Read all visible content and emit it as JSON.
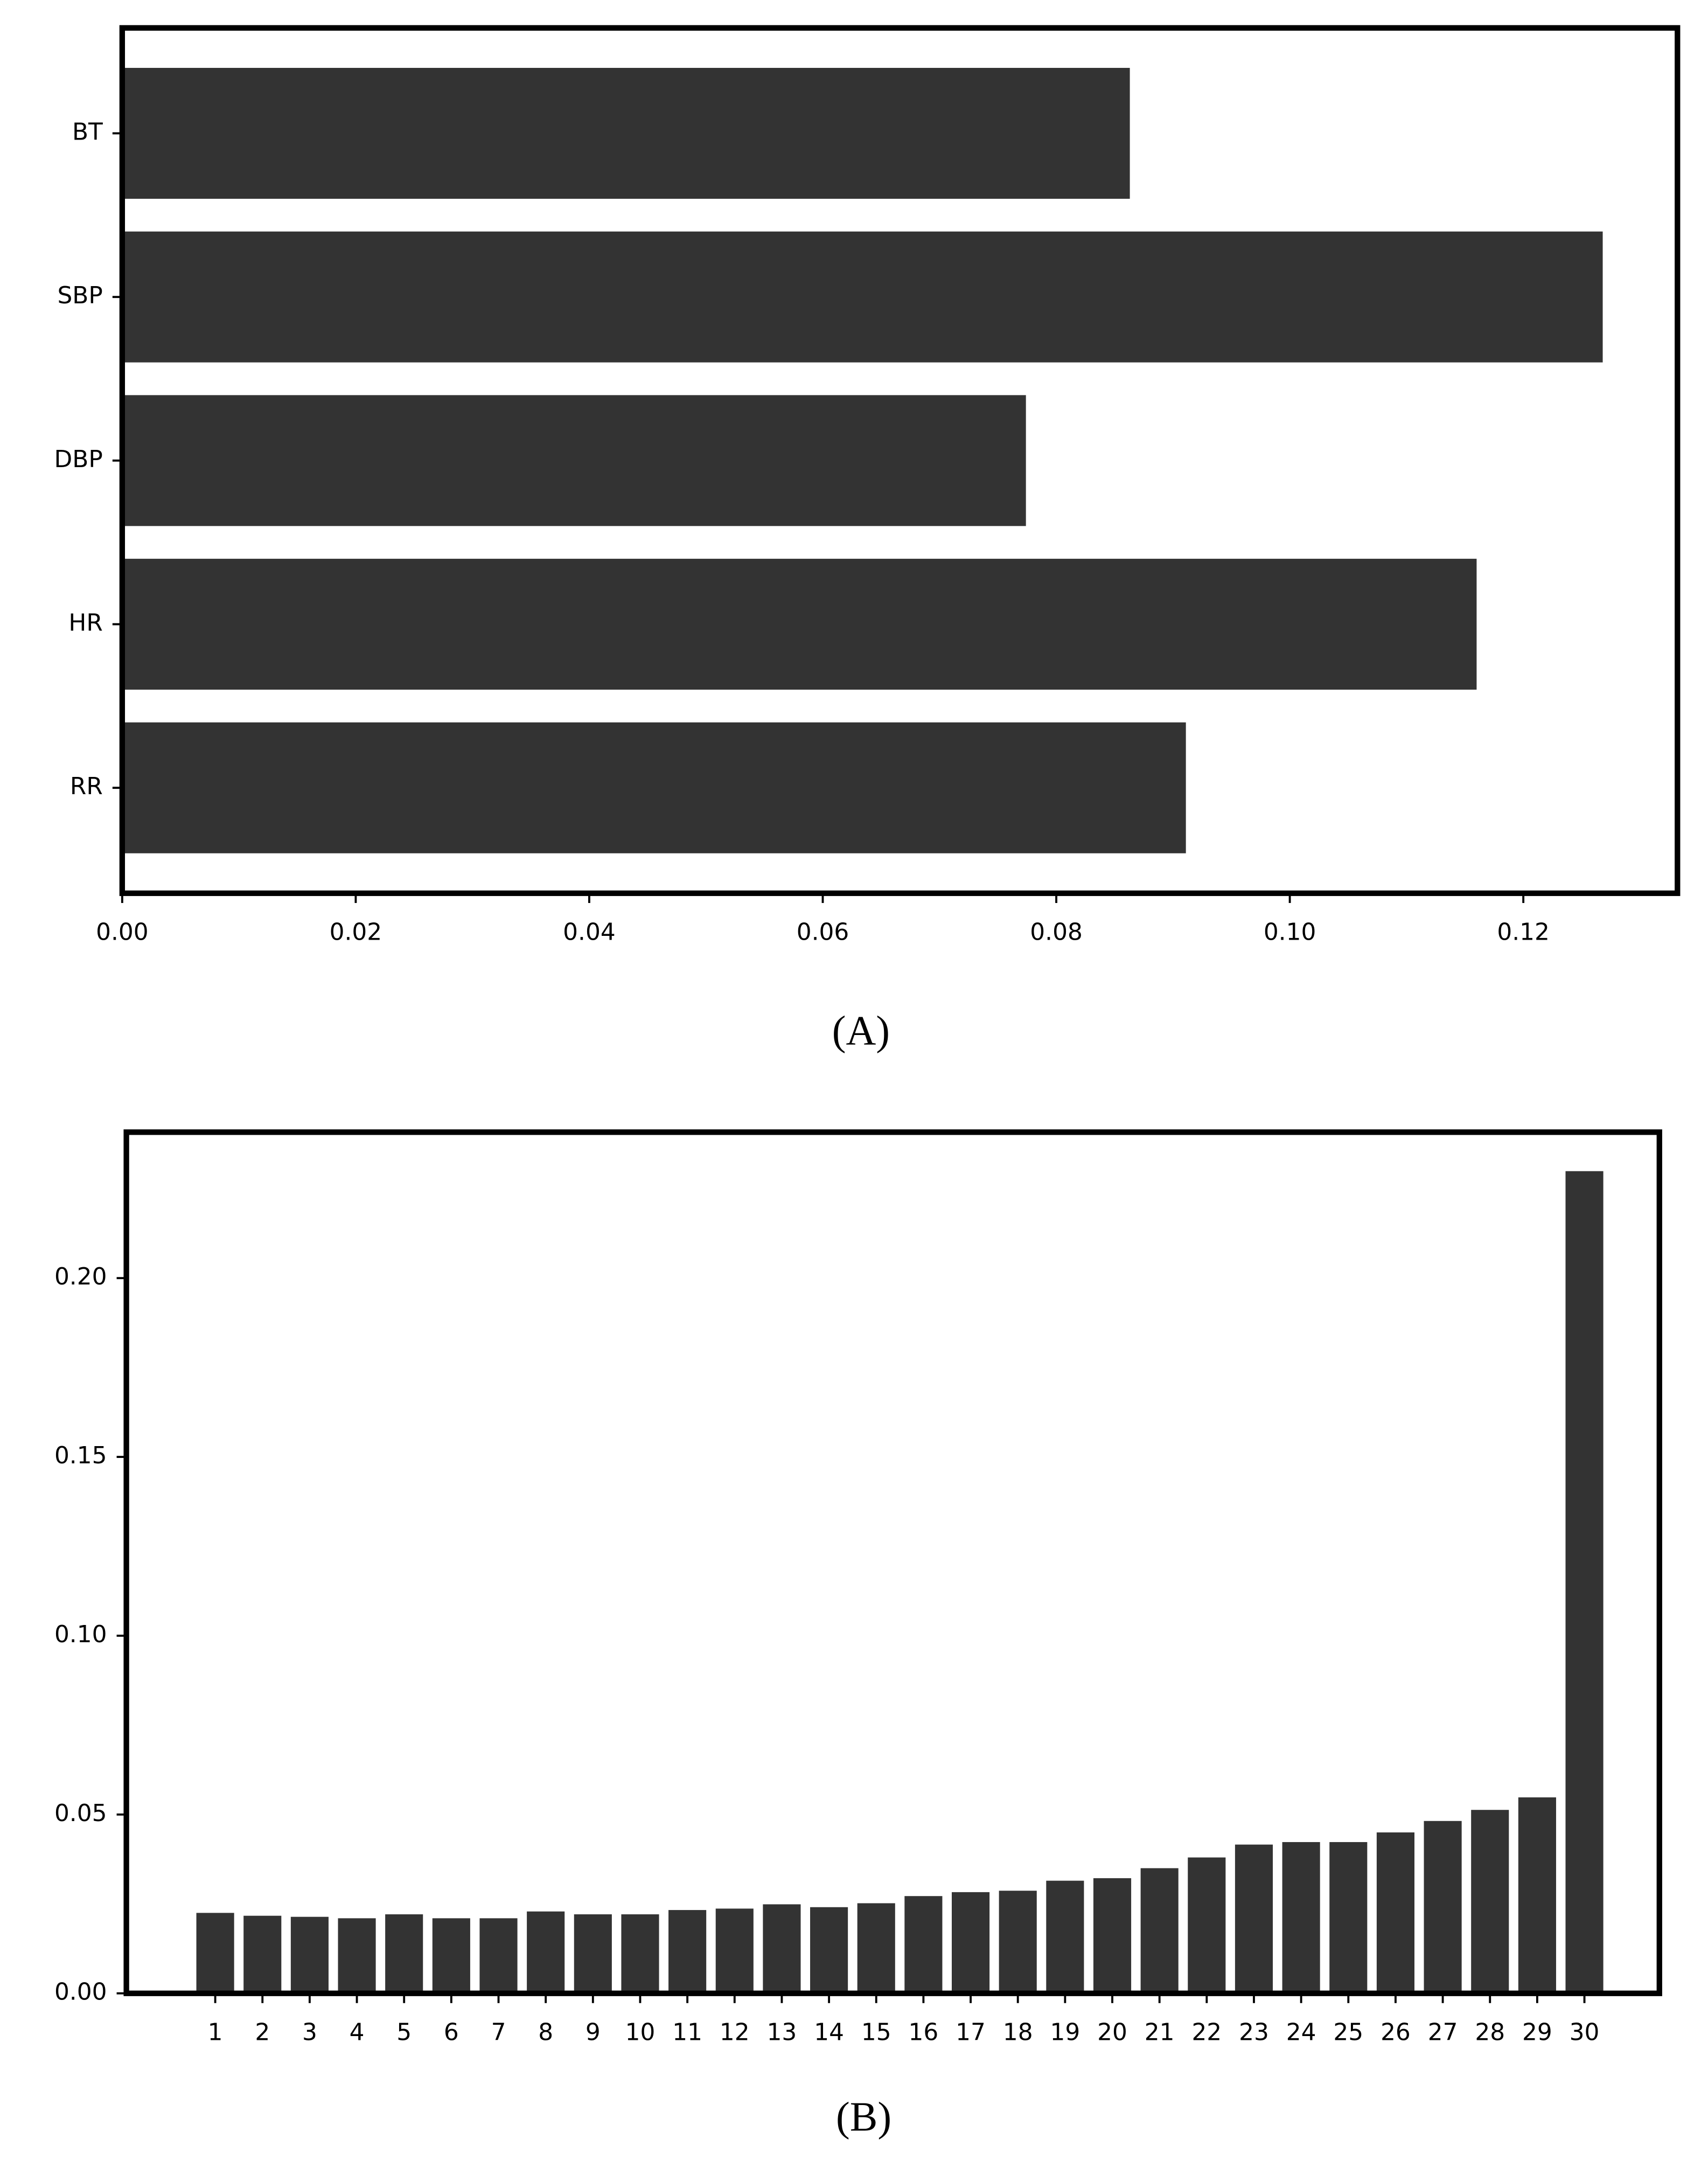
{
  "chart_data": [
    {
      "type": "barh",
      "caption": "(A)",
      "color": "#333333",
      "categories": [
        "BT",
        "SBP",
        "DBP",
        "HR",
        "RR"
      ],
      "values": [
        0.0863,
        0.1268,
        0.0774,
        0.116,
        0.0911
      ],
      "xlim": [
        0,
        0.1332
      ],
      "xticks": [
        {
          "value": 0,
          "label": "0.00"
        },
        0.02,
        0.04,
        0.06,
        0.08,
        {
          "value": 0.1,
          "label": "0.10"
        },
        0.12
      ]
    },
    {
      "type": "bar",
      "caption": "(B)",
      "color": "#333333",
      "categories": [
        "1",
        "2",
        "3",
        "4",
        "5",
        "6",
        "7",
        "8",
        "9",
        "10",
        "11",
        "12",
        "13",
        "14",
        "15",
        "16",
        "17",
        "18",
        "19",
        "20",
        "21",
        "22",
        "23",
        "24",
        "25",
        "26",
        "27",
        "28",
        "29",
        "30"
      ],
      "values": [
        0.0225,
        0.0217,
        0.0214,
        0.021,
        0.0221,
        0.021,
        0.021,
        0.0229,
        0.0221,
        0.0221,
        0.0233,
        0.0237,
        0.0249,
        0.0241,
        0.0252,
        0.0272,
        0.0283,
        0.0287,
        0.0315,
        0.0322,
        0.035,
        0.038,
        0.0416,
        0.0423,
        0.0423,
        0.045,
        0.0482,
        0.0513,
        0.0548,
        0.2299
      ],
      "ylim": [
        0,
        0.2408
      ],
      "yticks": [
        {
          "value": 0,
          "label": "0.00"
        },
        0.05,
        {
          "value": 0.1,
          "label": "0.10"
        },
        0.15,
        {
          "value": 0.2,
          "label": "0.20"
        }
      ]
    }
  ]
}
